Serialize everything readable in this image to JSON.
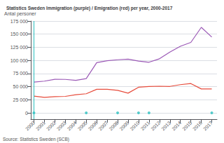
{
  "chart_data": {
    "type": "line",
    "title": "Statistics Sweden Immigration (purple) / Emigration (red) per year, 2000-2017",
    "ylabel": "Antal personer",
    "annotation": "Source: Statistics Sweden (SCB)",
    "x": [
      2000,
      2001,
      2002,
      2003,
      2004,
      2005,
      2006,
      2007,
      2008,
      2009,
      2010,
      2011,
      2012,
      2013,
      2014,
      2015,
      2016,
      2017
    ],
    "series": [
      {
        "color": "#9b59b6",
        "values": [
          58659,
          60480,
          64087,
          63795,
          62028,
          65229,
          95750,
          99485,
          101171,
          102280,
          98801,
          96467,
          103059,
          115845,
          126966,
          134240,
          163005,
          144489
        ]
      },
      {
        "color": "#e74c3c",
        "values": [
          31932,
          29609,
          30889,
          31399,
          34545,
          36399,
          44908,
          44980,
          42863,
          37616,
          48841,
          50314,
          50747,
          50407,
          53764,
          55830,
          45578,
          45612
        ]
      }
    ],
    "markers": {
      "type": "scatter",
      "marker": "circle",
      "color": "#2abfbf",
      "x": [
        2000,
        2005,
        2008,
        2010,
        2011,
        2017
      ],
      "values": [
        0,
        0,
        0,
        0,
        0,
        0
      ]
    },
    "vlines": [
      {
        "x": 2000,
        "color": "#2abfbf"
      }
    ],
    "xlim": [
      1999.7,
      2017.5
    ],
    "xticks": [
      2000,
      2001,
      2002,
      2003,
      2004,
      2005,
      2006,
      2007,
      2008,
      2009,
      2010,
      2011,
      2012,
      2013,
      2014,
      2015,
      2016,
      2017
    ],
    "ylim": [
      -12000,
      175000
    ],
    "yticks": [
      0,
      {
        "value": 25000,
        "label": "25 000"
      },
      {
        "value": 50000,
        "label": "50 000"
      },
      {
        "value": 75000,
        "label": "75 000"
      },
      {
        "value": 100000,
        "label": "100 000"
      },
      {
        "value": 125000,
        "label": "125 000"
      },
      {
        "value": 150000,
        "label": "150 000"
      },
      {
        "value": 175000,
        "label": "175 000"
      }
    ],
    "grid": true
  }
}
